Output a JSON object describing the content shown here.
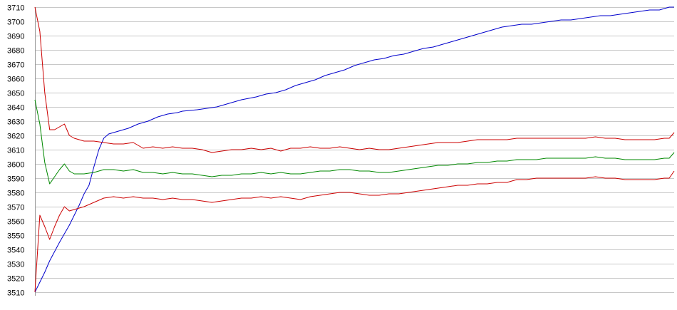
{
  "chart_data": {
    "type": "line",
    "title": "",
    "xlabel": "",
    "ylabel": "",
    "ylim": [
      3510,
      3710
    ],
    "xlim": [
      0,
      130
    ],
    "yticks": [
      3510,
      3520,
      3530,
      3540,
      3550,
      3560,
      3570,
      3580,
      3590,
      3600,
      3610,
      3620,
      3630,
      3640,
      3650,
      3660,
      3670,
      3680,
      3690,
      3700,
      3710
    ],
    "grid": true,
    "legend": "none",
    "series": [
      {
        "color": "#0000cc",
        "points": [
          [
            0,
            3510
          ],
          [
            2,
            3524
          ],
          [
            3,
            3532
          ],
          [
            5,
            3545
          ],
          [
            7,
            3557
          ],
          [
            9,
            3571
          ],
          [
            10,
            3579
          ],
          [
            11,
            3585
          ],
          [
            12,
            3598
          ],
          [
            13,
            3610
          ],
          [
            14,
            3618
          ],
          [
            15,
            3621
          ],
          [
            17,
            3623
          ],
          [
            19,
            3625
          ],
          [
            21,
            3628
          ],
          [
            23,
            3630
          ],
          [
            25,
            3633
          ],
          [
            27,
            3635
          ],
          [
            29,
            3636
          ],
          [
            30,
            3637
          ],
          [
            33,
            3638
          ],
          [
            35,
            3639
          ],
          [
            37,
            3640
          ],
          [
            39,
            3642
          ],
          [
            42,
            3645
          ],
          [
            45,
            3647
          ],
          [
            47,
            3649
          ],
          [
            49,
            3650
          ],
          [
            51,
            3652
          ],
          [
            53,
            3655
          ],
          [
            55,
            3657
          ],
          [
            57,
            3659
          ],
          [
            59,
            3662
          ],
          [
            61,
            3664
          ],
          [
            63,
            3666
          ],
          [
            65,
            3669
          ],
          [
            67,
            3671
          ],
          [
            69,
            3673
          ],
          [
            71,
            3674
          ],
          [
            73,
            3676
          ],
          [
            75,
            3677
          ],
          [
            77,
            3679
          ],
          [
            79,
            3681
          ],
          [
            81,
            3682
          ],
          [
            83,
            3684
          ],
          [
            85,
            3686
          ],
          [
            87,
            3688
          ],
          [
            89,
            3690
          ],
          [
            91,
            3692
          ],
          [
            93,
            3694
          ],
          [
            95,
            3696
          ],
          [
            97,
            3697
          ],
          [
            99,
            3698
          ],
          [
            101,
            3698
          ],
          [
            103,
            3699
          ],
          [
            105,
            3700
          ],
          [
            107,
            3701
          ],
          [
            109,
            3701
          ],
          [
            111,
            3702
          ],
          [
            113,
            3703
          ],
          [
            115,
            3704
          ],
          [
            117,
            3704
          ],
          [
            119,
            3705
          ],
          [
            121,
            3706
          ],
          [
            123,
            3707
          ],
          [
            125,
            3708
          ],
          [
            127,
            3708
          ],
          [
            129,
            3710
          ],
          [
            130,
            3710
          ]
        ]
      },
      {
        "color": "#cc0000",
        "points": [
          [
            0,
            3710
          ],
          [
            1,
            3693
          ],
          [
            2,
            3650
          ],
          [
            3,
            3624
          ],
          [
            4,
            3624
          ],
          [
            5,
            3626
          ],
          [
            6,
            3628
          ],
          [
            7,
            3620
          ],
          [
            8,
            3618
          ],
          [
            10,
            3616
          ],
          [
            12,
            3616
          ],
          [
            14,
            3615
          ],
          [
            16,
            3614
          ],
          [
            18,
            3614
          ],
          [
            20,
            3615
          ],
          [
            22,
            3611
          ],
          [
            24,
            3612
          ],
          [
            26,
            3611
          ],
          [
            28,
            3612
          ],
          [
            30,
            3611
          ],
          [
            32,
            3611
          ],
          [
            34,
            3610
          ],
          [
            36,
            3608
          ],
          [
            38,
            3609
          ],
          [
            40,
            3610
          ],
          [
            42,
            3610
          ],
          [
            44,
            3611
          ],
          [
            46,
            3610
          ],
          [
            48,
            3611
          ],
          [
            50,
            3609
          ],
          [
            52,
            3611
          ],
          [
            54,
            3611
          ],
          [
            56,
            3612
          ],
          [
            58,
            3611
          ],
          [
            60,
            3611
          ],
          [
            62,
            3612
          ],
          [
            64,
            3611
          ],
          [
            66,
            3610
          ],
          [
            68,
            3611
          ],
          [
            70,
            3610
          ],
          [
            72,
            3610
          ],
          [
            74,
            3611
          ],
          [
            76,
            3612
          ],
          [
            78,
            3613
          ],
          [
            80,
            3614
          ],
          [
            82,
            3615
          ],
          [
            84,
            3615
          ],
          [
            86,
            3615
          ],
          [
            88,
            3616
          ],
          [
            90,
            3617
          ],
          [
            92,
            3617
          ],
          [
            94,
            3617
          ],
          [
            96,
            3617
          ],
          [
            98,
            3618
          ],
          [
            100,
            3618
          ],
          [
            102,
            3618
          ],
          [
            104,
            3618
          ],
          [
            106,
            3618
          ],
          [
            108,
            3618
          ],
          [
            110,
            3618
          ],
          [
            112,
            3618
          ],
          [
            114,
            3619
          ],
          [
            116,
            3618
          ],
          [
            118,
            3618
          ],
          [
            120,
            3617
          ],
          [
            122,
            3617
          ],
          [
            124,
            3617
          ],
          [
            126,
            3617
          ],
          [
            128,
            3618
          ],
          [
            129,
            3618
          ],
          [
            130,
            3622
          ]
        ]
      },
      {
        "color": "#008800",
        "points": [
          [
            0,
            3645
          ],
          [
            1,
            3628
          ],
          [
            2,
            3601
          ],
          [
            3,
            3586
          ],
          [
            4,
            3591
          ],
          [
            5,
            3596
          ],
          [
            6,
            3600
          ],
          [
            7,
            3595
          ],
          [
            8,
            3593
          ],
          [
            10,
            3593
          ],
          [
            12,
            3594
          ],
          [
            14,
            3596
          ],
          [
            16,
            3596
          ],
          [
            18,
            3595
          ],
          [
            20,
            3596
          ],
          [
            22,
            3594
          ],
          [
            24,
            3594
          ],
          [
            26,
            3593
          ],
          [
            28,
            3594
          ],
          [
            30,
            3593
          ],
          [
            32,
            3593
          ],
          [
            34,
            3592
          ],
          [
            36,
            3591
          ],
          [
            38,
            3592
          ],
          [
            40,
            3592
          ],
          [
            42,
            3593
          ],
          [
            44,
            3593
          ],
          [
            46,
            3594
          ],
          [
            48,
            3593
          ],
          [
            50,
            3594
          ],
          [
            52,
            3593
          ],
          [
            54,
            3593
          ],
          [
            56,
            3594
          ],
          [
            58,
            3595
          ],
          [
            60,
            3595
          ],
          [
            62,
            3596
          ],
          [
            64,
            3596
          ],
          [
            66,
            3595
          ],
          [
            68,
            3595
          ],
          [
            70,
            3594
          ],
          [
            72,
            3594
          ],
          [
            74,
            3595
          ],
          [
            76,
            3596
          ],
          [
            78,
            3597
          ],
          [
            80,
            3598
          ],
          [
            82,
            3599
          ],
          [
            84,
            3599
          ],
          [
            86,
            3600
          ],
          [
            88,
            3600
          ],
          [
            90,
            3601
          ],
          [
            92,
            3601
          ],
          [
            94,
            3602
          ],
          [
            96,
            3602
          ],
          [
            98,
            3603
          ],
          [
            100,
            3603
          ],
          [
            102,
            3603
          ],
          [
            104,
            3604
          ],
          [
            106,
            3604
          ],
          [
            108,
            3604
          ],
          [
            110,
            3604
          ],
          [
            112,
            3604
          ],
          [
            114,
            3605
          ],
          [
            116,
            3604
          ],
          [
            118,
            3604
          ],
          [
            120,
            3603
          ],
          [
            122,
            3603
          ],
          [
            124,
            3603
          ],
          [
            126,
            3603
          ],
          [
            128,
            3604
          ],
          [
            129,
            3604
          ],
          [
            130,
            3608
          ]
        ]
      },
      {
        "color": "#cc0000",
        "points": [
          [
            0,
            3510
          ],
          [
            1,
            3564
          ],
          [
            2,
            3556
          ],
          [
            3,
            3547
          ],
          [
            4,
            3556
          ],
          [
            5,
            3564
          ],
          [
            6,
            3570
          ],
          [
            7,
            3567
          ],
          [
            8,
            3568
          ],
          [
            10,
            3570
          ],
          [
            12,
            3573
          ],
          [
            14,
            3576
          ],
          [
            16,
            3577
          ],
          [
            18,
            3576
          ],
          [
            20,
            3577
          ],
          [
            22,
            3576
          ],
          [
            24,
            3576
          ],
          [
            26,
            3575
          ],
          [
            28,
            3576
          ],
          [
            30,
            3575
          ],
          [
            32,
            3575
          ],
          [
            34,
            3574
          ],
          [
            36,
            3573
          ],
          [
            38,
            3574
          ],
          [
            40,
            3575
          ],
          [
            42,
            3576
          ],
          [
            44,
            3576
          ],
          [
            46,
            3577
          ],
          [
            48,
            3576
          ],
          [
            50,
            3577
          ],
          [
            52,
            3576
          ],
          [
            54,
            3575
          ],
          [
            56,
            3577
          ],
          [
            58,
            3578
          ],
          [
            60,
            3579
          ],
          [
            62,
            3580
          ],
          [
            64,
            3580
          ],
          [
            66,
            3579
          ],
          [
            68,
            3578
          ],
          [
            70,
            3578
          ],
          [
            72,
            3579
          ],
          [
            74,
            3579
          ],
          [
            76,
            3580
          ],
          [
            78,
            3581
          ],
          [
            80,
            3582
          ],
          [
            82,
            3583
          ],
          [
            84,
            3584
          ],
          [
            86,
            3585
          ],
          [
            88,
            3585
          ],
          [
            90,
            3586
          ],
          [
            92,
            3586
          ],
          [
            94,
            3587
          ],
          [
            96,
            3587
          ],
          [
            98,
            3589
          ],
          [
            100,
            3589
          ],
          [
            102,
            3590
          ],
          [
            104,
            3590
          ],
          [
            106,
            3590
          ],
          [
            108,
            3590
          ],
          [
            110,
            3590
          ],
          [
            112,
            3590
          ],
          [
            114,
            3591
          ],
          [
            116,
            3590
          ],
          [
            118,
            3590
          ],
          [
            120,
            3589
          ],
          [
            122,
            3589
          ],
          [
            124,
            3589
          ],
          [
            126,
            3589
          ],
          [
            128,
            3590
          ],
          [
            129,
            3590
          ],
          [
            130,
            3595
          ]
        ]
      }
    ]
  }
}
